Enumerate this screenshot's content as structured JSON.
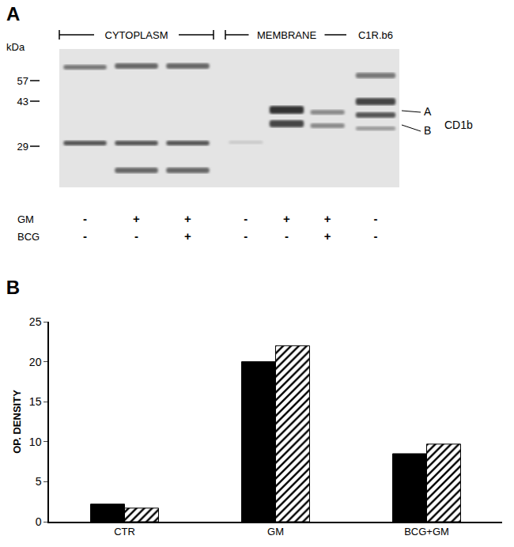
{
  "blot": {
    "panel": "A",
    "unit": "kDa",
    "markers": [
      57,
      43,
      29
    ],
    "row_labels": [
      "GM",
      "BCG"
    ],
    "groups": [
      {
        "label": "CYTOPLASM",
        "lanes": [
          {
            "GM": "-",
            "BCG": "-"
          },
          {
            "GM": "+",
            "BCG": "-"
          },
          {
            "GM": "+",
            "BCG": "+"
          }
        ]
      },
      {
        "label": "MEMBRANE",
        "lanes": [
          {
            "GM": "-",
            "BCG": "-"
          },
          {
            "GM": "+",
            "BCG": "-"
          },
          {
            "GM": "+",
            "BCG": "+"
          }
        ]
      },
      {
        "label": "C1R.b6",
        "lanes": [
          {
            "GM": "-",
            "BCG": "-"
          }
        ]
      }
    ],
    "bands": [
      "A",
      "B"
    ],
    "protein": "CD1b"
  },
  "chart_data": {
    "type": "bar",
    "title": "B",
    "categories": [
      "CTR",
      "GM",
      "BCG+GM"
    ],
    "series": [
      {
        "color": "#000000",
        "marker": "solid",
        "values": [
          2.2,
          20,
          8.5
        ]
      },
      {
        "color": "#000000",
        "marker": "hatched",
        "values": [
          1.7,
          22,
          9.7
        ]
      }
    ],
    "y_label": "OP. DENSITY",
    "ylim": [
      0,
      25
    ],
    "yticks": [
      0,
      5,
      10,
      15,
      20,
      25
    ],
    "grid": false
  }
}
